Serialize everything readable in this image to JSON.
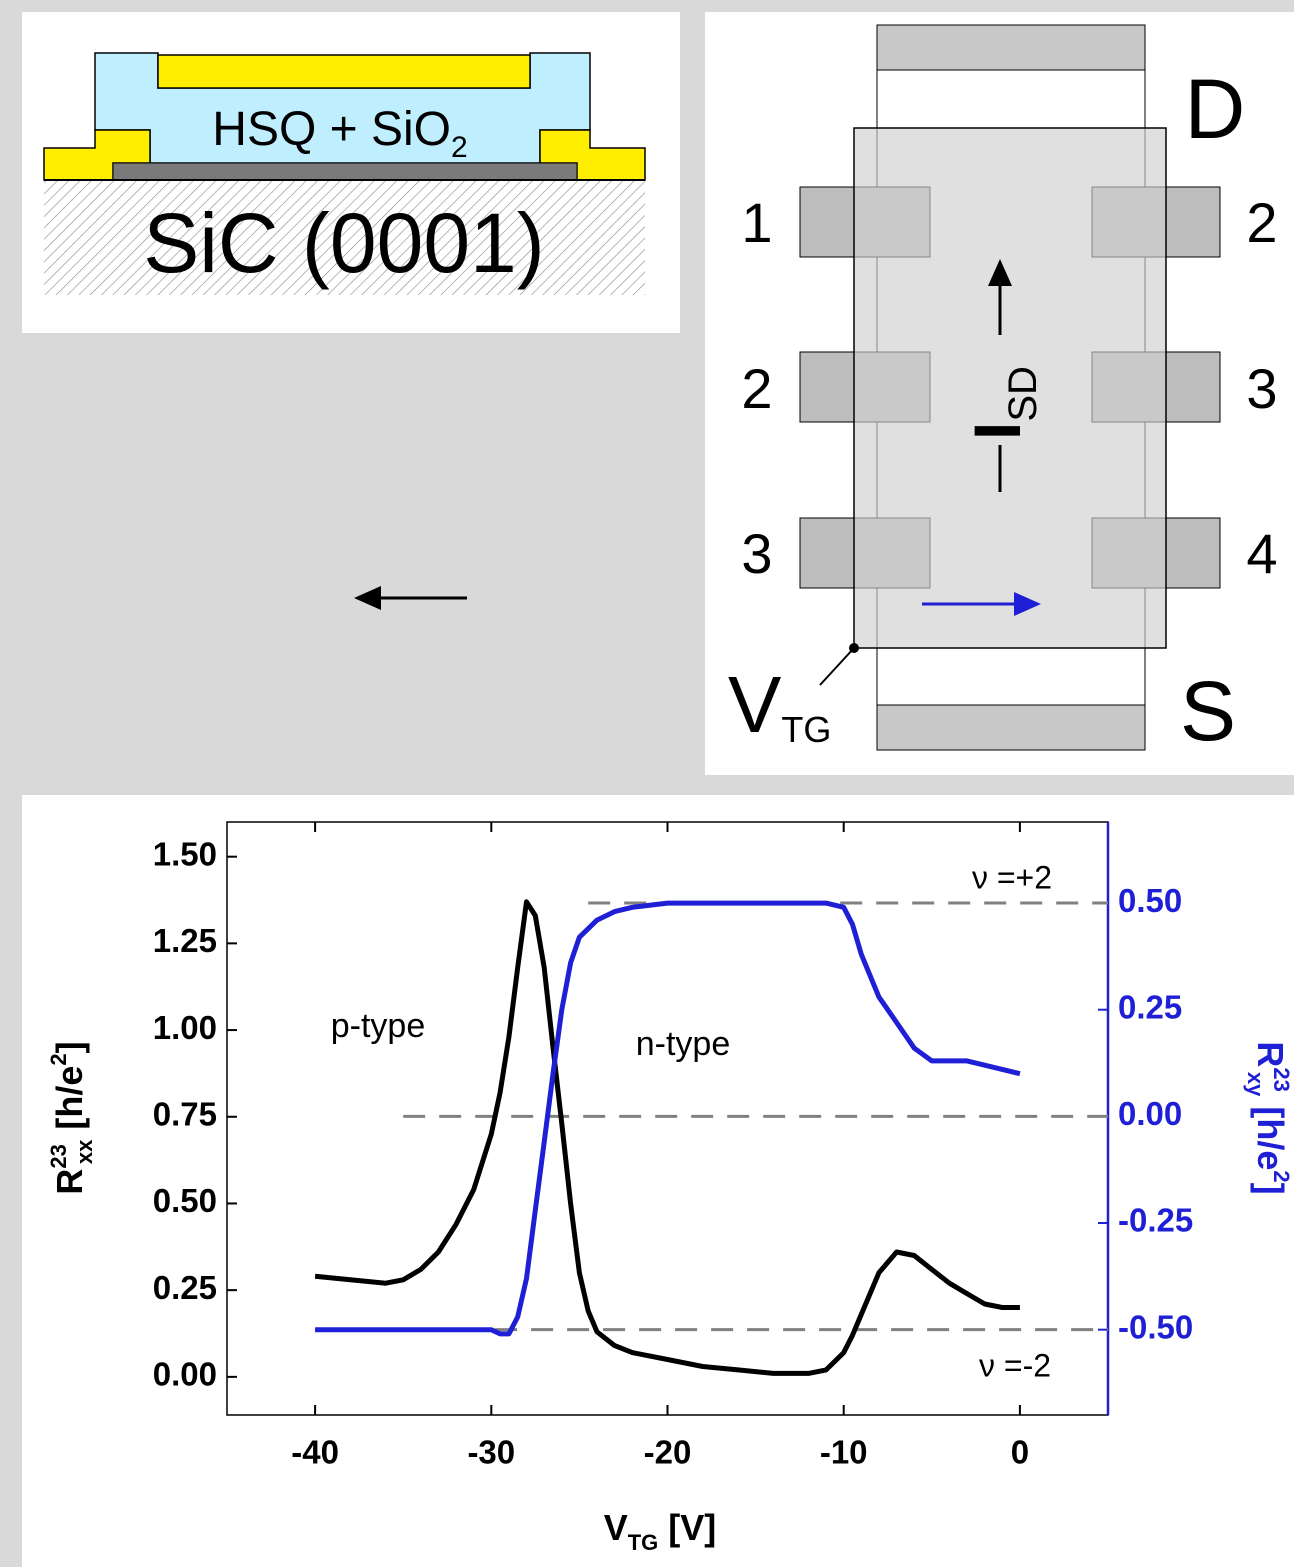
{
  "cross_section": {
    "layer": "HSQ + SiO",
    "layer_sub": "2",
    "substrate": "SiC (0001)"
  },
  "device": {
    "drain": "D",
    "source": "S",
    "gate": "V",
    "gate_sub": "TG",
    "left_contacts": [
      "1",
      "2",
      "3"
    ],
    "right_contacts": [
      "2",
      "3",
      "4"
    ],
    "current": "I",
    "current_sub": "SD"
  },
  "chart_data": {
    "type": "line",
    "x_label": "V",
    "x_label_sub": "TG",
    "x_label_unit": " [V]",
    "y_label": "R",
    "y_label_sup": "23",
    "y_label_sub": "xx",
    "y_label_unit": " [h/e",
    "y_label_unit_sup": "2",
    "y_label_close": "]",
    "y2_label": "R",
    "y2_label_sup": "23",
    "y2_label_sub": "xy",
    "y2_label_unit": " [h/e",
    "y2_label_unit_sup": "2",
    "y2_label_close": "]",
    "annotations": [
      "p-type",
      "n-type",
      "ν =+2",
      "ν =-2"
    ],
    "x": [
      -40,
      -38,
      -36,
      -35,
      -34,
      -33,
      -32,
      -31,
      -30,
      -29.5,
      -29,
      -28.5,
      -28,
      -27.5,
      -27,
      -26.5,
      -26,
      -25.5,
      -25,
      -24.5,
      -24,
      -23,
      -22,
      -20,
      -18,
      -16,
      -14,
      -12,
      -11,
      -10,
      -9.5,
      -9,
      -8,
      -7,
      -6,
      -5,
      -4,
      -3,
      -2,
      -1,
      0
    ],
    "series": [
      {
        "color": "#000000",
        "values": [
          0.29,
          0.28,
          0.27,
          0.28,
          0.31,
          0.36,
          0.44,
          0.54,
          0.7,
          0.82,
          0.98,
          1.18,
          1.37,
          1.33,
          1.18,
          0.95,
          0.73,
          0.5,
          0.3,
          0.19,
          0.13,
          0.09,
          0.07,
          0.05,
          0.03,
          0.02,
          0.01,
          0.01,
          0.02,
          0.07,
          0.12,
          0.18,
          0.3,
          0.36,
          0.35,
          0.31,
          0.27,
          0.24,
          0.21,
          0.2,
          0.2
        ]
      },
      {
        "color": "#1f1fd6",
        "axis": "y2",
        "values": [
          -0.5,
          -0.5,
          -0.5,
          -0.5,
          -0.5,
          -0.5,
          -0.5,
          -0.5,
          -0.5,
          -0.51,
          -0.51,
          -0.47,
          -0.38,
          -0.22,
          -0.06,
          0.1,
          0.25,
          0.36,
          0.42,
          0.44,
          0.46,
          0.48,
          0.49,
          0.5,
          0.5,
          0.5,
          0.5,
          0.5,
          0.5,
          0.49,
          0.45,
          0.38,
          0.28,
          0.22,
          0.16,
          0.13,
          0.13,
          0.13,
          0.12,
          0.11,
          0.1
        ]
      }
    ],
    "reference_lines": [
      {
        "axis": "y2",
        "value": 0.5,
        "x_start": -24.5
      },
      {
        "axis": "y2",
        "value": 0,
        "x_start": -35
      },
      {
        "axis": "y2",
        "value": -0.5,
        "x_start": -40
      }
    ],
    "xlim": [
      -45,
      5
    ],
    "xticks": [
      -40,
      -30,
      -20,
      -10,
      0
    ],
    "ylim": [
      -0.11,
      1.6
    ],
    "yticks": [
      {
        "value": 0,
        "label": "0.00"
      },
      {
        "value": 0.25,
        "label": "0.25"
      },
      {
        "value": 0.5,
        "label": "0.50"
      },
      {
        "value": 0.75,
        "label": "0.75"
      },
      {
        "value": 1,
        "label": "1.00"
      },
      {
        "value": 1.25,
        "label": "1.25"
      },
      {
        "value": 1.5,
        "label": "1.50"
      }
    ],
    "y2lim": [
      -0.7,
      0.69
    ],
    "y2ticks": [
      {
        "value": -0.5,
        "label": "-0.50"
      },
      {
        "value": -0.25,
        "label": "-0.25"
      },
      {
        "value": 0,
        "label": "0.00"
      },
      {
        "value": 0.25,
        "label": "0.25"
      },
      {
        "value": 0.5,
        "label": "0.50"
      }
    ],
    "y2_color": "#1f1fd6"
  }
}
